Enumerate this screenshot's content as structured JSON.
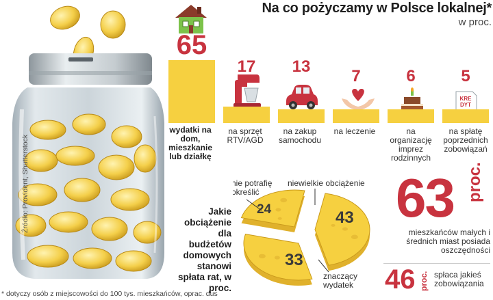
{
  "header": {
    "title": "Na co pożyczamy w Polsce lokalnej*",
    "unit": "w proc."
  },
  "source": "Źródło: Provident, Shutterstock",
  "footnote": "* dotyczy osób z miejscowości do 100 tys. mieszkańców, oprac. dus",
  "question": "Jakie obciążenie dla budżetów domowych stanowi spłata rat, w proc.",
  "chart_data": [
    {
      "type": "bar",
      "title": "Na co pożyczamy w Polsce lokalnej*",
      "ylabel": "w proc.",
      "ylim": [
        0,
        70
      ],
      "categories": [
        "wydatki na dom, mieszkanie lub działkę",
        "na sprzęt RTV/AGD",
        "na zakup samochodu",
        "na leczenie",
        "na organizację imprez rodzinnych",
        "na spłatę poprzednich zobowiązań"
      ],
      "values": [
        65,
        17,
        13,
        7,
        6,
        5
      ],
      "value_labels": [
        "65",
        "17",
        "13",
        "7",
        "6",
        "5"
      ]
    },
    {
      "type": "pie",
      "title": "Jakie obciążenie dla budżetów domowych stanowi spłata rat, w proc.",
      "categories": [
        "nie potrafię określić",
        "niewielkie obciążenie",
        "znaczący wydatek"
      ],
      "values": [
        24,
        43,
        33
      ],
      "value_labels": [
        "24",
        "43",
        "33"
      ]
    }
  ],
  "stats": {
    "big_value": "63",
    "big_unit": "proc.",
    "big_desc": "mieszkańców małych i średnich miast posiada oszczędności",
    "small_value": "46",
    "small_unit": "proc.",
    "small_desc": "spłaca jakieś zobowiązania"
  },
  "icons": {
    "house": "house-icon",
    "mixer": "kitchen-mixer-icon",
    "car": "car-icon",
    "heart": "heart-in-hands-icon",
    "cake": "birthday-cake-icon",
    "credit": "credit-document-icon",
    "kredyt_text": "KRE DYT"
  },
  "colors": {
    "accent": "#c8333f",
    "bar": "#f6d040",
    "cheese": "#f6d040",
    "cheese_edge": "#e0b12c"
  }
}
